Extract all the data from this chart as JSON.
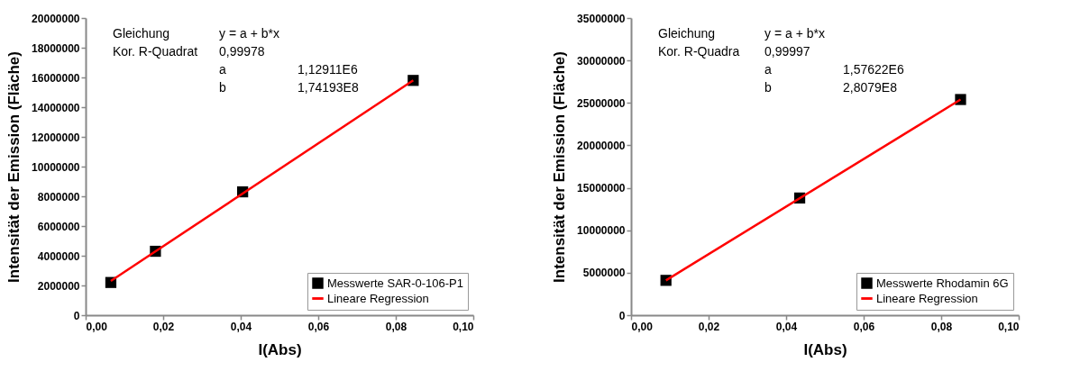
{
  "chart_data": [
    {
      "type": "scatter",
      "xlabel": "I(Abs)",
      "ylabel": "Intensität der Emission (Fläche)",
      "line_style": "solid",
      "legend": "bottom right",
      "xlim": [
        0,
        0.1
      ],
      "xticks": [
        {
          "value": 0,
          "label": "0,00"
        },
        {
          "value": 0.02,
          "label": "0,02"
        },
        {
          "value": 0.04,
          "label": "0,04"
        },
        {
          "value": 0.06,
          "label": "0,06"
        },
        {
          "value": 0.08,
          "label": "0,08"
        },
        {
          "value": 0.1,
          "label": "0,10"
        }
      ],
      "ylim": [
        0,
        20000000
      ],
      "yticks": [
        0,
        2000000,
        4000000,
        6000000,
        8000000,
        10000000,
        12000000,
        14000000,
        16000000,
        18000000,
        20000000
      ],
      "annotations": [
        "Gleichung",
        "y = a + b*x",
        "Kor. R-Quadrat",
        "0,99978",
        "a",
        "1,12911E6",
        "b",
        "1,74193E8"
      ],
      "series": [
        {
          "name": "Messwerte SAR-0-106-P1",
          "color": "#000000",
          "marker": "square",
          "x": [
            0.0065,
            0.018,
            0.0405,
            0.0845
          ],
          "values": [
            2200000,
            4300000,
            8300000,
            15800000
          ]
        },
        {
          "name": "Lineare Regression",
          "type": "line",
          "color": "#ff0000",
          "x": [
            0.0065,
            0.0845
          ],
          "values": [
            2300000,
            15800000
          ]
        }
      ]
    },
    {
      "type": "scatter",
      "xlabel": "I(Abs)",
      "ylabel": "Intensität der Emission (Fläche)",
      "line_style": "solid",
      "legend": "bottom right",
      "xlim": [
        0,
        0.1
      ],
      "xticks": [
        {
          "value": 0,
          "label": "0,00"
        },
        {
          "value": 0.02,
          "label": "0,02"
        },
        {
          "value": 0.04,
          "label": "0,04"
        },
        {
          "value": 0.06,
          "label": "0,06"
        },
        {
          "value": 0.08,
          "label": "0,08"
        },
        {
          "value": 0.1,
          "label": "0,10"
        }
      ],
      "ylim": [
        0,
        35000000
      ],
      "yticks": [
        0,
        5000000,
        10000000,
        15000000,
        20000000,
        25000000,
        30000000,
        35000000
      ],
      "annotations": [
        "Gleichung",
        "y = a + b*x",
        "Kor. R-Quadra",
        "0,99997",
        "a",
        "1,57622E6",
        "b",
        "2,8079E8"
      ],
      "series": [
        {
          "name": "Messwerte Rhodamin 6G",
          "color": "#000000",
          "marker": "square",
          "x": [
            0.009,
            0.0435,
            0.085
          ],
          "values": [
            4100000,
            13800000,
            25400000
          ]
        },
        {
          "name": "Lineare Regression",
          "type": "line",
          "color": "#ff0000",
          "x": [
            0.009,
            0.085
          ],
          "values": [
            4100000,
            25400000
          ]
        }
      ]
    }
  ]
}
